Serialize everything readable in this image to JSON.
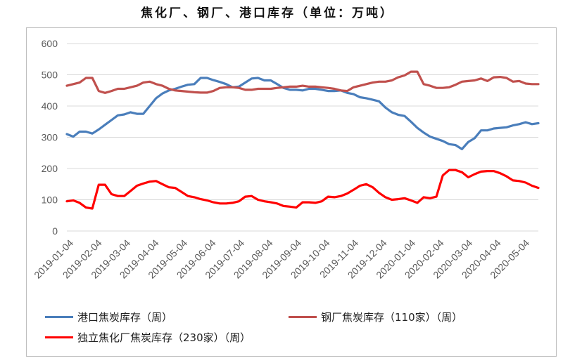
{
  "title": "焦化厂、钢厂、港口库存（单位：万吨）",
  "chart_data": {
    "type": "line",
    "title": "焦化厂、钢厂、港口库存（单位：万吨）",
    "ylim": [
      0,
      600
    ],
    "yticks": [
      0,
      100,
      200,
      300,
      400,
      500,
      600
    ],
    "grid": "horizontal",
    "legend_position": "bottom",
    "x_tick_labels": [
      "2019-01-04",
      "2019-02-04",
      "2019-03-04",
      "2019-04-04",
      "2019-05-04",
      "2019-06-04",
      "2019-07-04",
      "2019-08-04",
      "2019-09-04",
      "2019-10-04",
      "2019-11-04",
      "2019-12-04",
      "2020-01-04",
      "2020-02-04",
      "2020-03-04",
      "2020-04-04",
      "2020-05-04"
    ],
    "series": [
      {
        "name": "港口焦炭库存（周）",
        "color": "#4a7ebb",
        "values": [
          310,
          302,
          318,
          318,
          312,
          325,
          340,
          355,
          370,
          373,
          380,
          375,
          375,
          400,
          425,
          440,
          450,
          455,
          462,
          468,
          470,
          490,
          490,
          483,
          477,
          470,
          460,
          462,
          475,
          488,
          490,
          482,
          482,
          470,
          458,
          452,
          452,
          450,
          455,
          455,
          452,
          448,
          448,
          450,
          442,
          438,
          428,
          425,
          420,
          415,
          395,
          380,
          372,
          368,
          350,
          330,
          315,
          302,
          295,
          288,
          278,
          275,
          262,
          285,
          297,
          322,
          322,
          328,
          330,
          332,
          338,
          342,
          348,
          342,
          345
        ]
      },
      {
        "name": "钢厂焦炭库存（110家）（周）",
        "color": "#c0504d",
        "values": [
          465,
          470,
          475,
          490,
          490,
          448,
          442,
          448,
          455,
          455,
          460,
          465,
          475,
          478,
          470,
          465,
          455,
          450,
          448,
          446,
          444,
          443,
          443,
          448,
          458,
          460,
          460,
          458,
          452,
          452,
          455,
          455,
          455,
          458,
          460,
          462,
          462,
          465,
          462,
          462,
          460,
          458,
          455,
          450,
          448,
          460,
          465,
          470,
          475,
          478,
          478,
          482,
          492,
          498,
          510,
          510,
          470,
          465,
          458,
          458,
          460,
          468,
          478,
          480,
          482,
          488,
          480,
          492,
          493,
          490,
          478,
          480,
          472,
          470,
          470
        ]
      },
      {
        "name": "独立焦化厂焦炭库存（230家）（周）",
        "color": "#ff0000",
        "values": [
          95,
          98,
          90,
          75,
          72,
          148,
          148,
          118,
          112,
          112,
          128,
          145,
          152,
          158,
          160,
          150,
          140,
          138,
          125,
          112,
          108,
          102,
          98,
          92,
          88,
          88,
          90,
          95,
          110,
          112,
          100,
          95,
          92,
          88,
          80,
          78,
          75,
          92,
          92,
          90,
          95,
          110,
          108,
          112,
          120,
          132,
          145,
          150,
          140,
          122,
          108,
          100,
          102,
          105,
          98,
          90,
          108,
          105,
          110,
          178,
          195,
          195,
          188,
          172,
          182,
          190,
          192,
          192,
          185,
          175,
          162,
          160,
          155,
          145,
          138
        ]
      }
    ]
  }
}
